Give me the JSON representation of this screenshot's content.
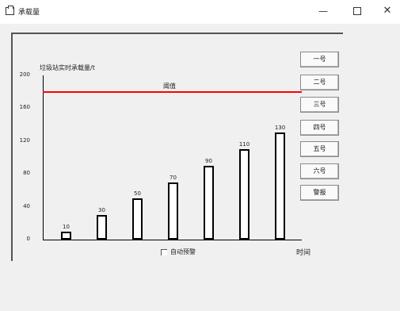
{
  "window": {
    "title": "承载量",
    "minimize": "—",
    "maximize": "",
    "close": "✕"
  },
  "chart_data": {
    "type": "bar",
    "ylabel": "垃圾站实时承载量/t",
    "xlabel": "时间",
    "ylim": [
      0,
      200
    ],
    "yticks": [
      "0",
      "40",
      "80",
      "120",
      "160",
      "200"
    ],
    "values": [
      10,
      30,
      50,
      70,
      90,
      110,
      130
    ],
    "value_labels": [
      "10",
      "30",
      "50",
      "70",
      "90",
      "110",
      "130"
    ],
    "threshold": {
      "value": 180,
      "label": "阈值",
      "color": "#ff0000"
    }
  },
  "controls": {
    "auto_alarm_label": "自动预警",
    "auto_alarm_checked": false
  },
  "buttons": [
    "一号",
    "二号",
    "三号",
    "四号",
    "五号",
    "六号",
    "警报"
  ]
}
